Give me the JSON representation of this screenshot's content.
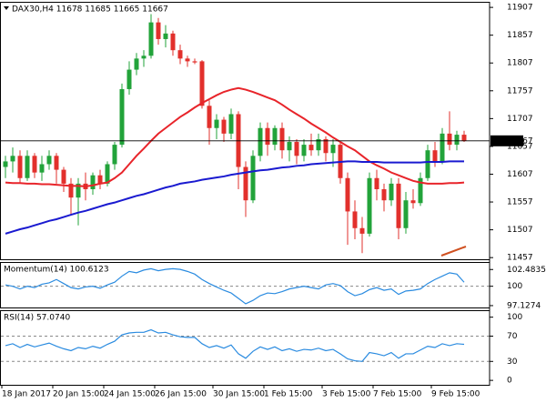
{
  "chart_data": [
    {
      "type": "candlestick",
      "title": "DAX30,H4 11678 11685 11665 11667",
      "categories": [
        "18 Jan 2017",
        null,
        null,
        null,
        null,
        null,
        null,
        "20 Jan 15:00",
        null,
        null,
        null,
        null,
        null,
        null,
        "24 Jan 15:00",
        null,
        null,
        null,
        null,
        null,
        null,
        "26 Jan 15:00",
        null,
        null,
        null,
        null,
        null,
        null,
        null,
        "30 Jan 15:00",
        null,
        null,
        null,
        null,
        null,
        null,
        "1 Feb 15:00",
        null,
        null,
        null,
        null,
        null,
        null,
        null,
        "3 Feb 15:00",
        null,
        null,
        null,
        null,
        null,
        null,
        "7 Feb 15:00",
        null,
        null,
        null,
        null,
        null,
        null,
        null,
        "9 Feb 15:00",
        null,
        null,
        null,
        null
      ],
      "open": [
        11620,
        11630,
        11640,
        11600,
        11640,
        11610,
        11625,
        11640,
        11615,
        11590,
        11565,
        11590,
        11580,
        11605,
        11590,
        11625,
        11660,
        11760,
        11795,
        11815,
        11820,
        11880,
        11850,
        11860,
        11830,
        11815,
        11810,
        11810,
        11730,
        11690,
        11705,
        11680,
        11715,
        11620,
        11560,
        11640,
        11690,
        11660,
        11690,
        11650,
        11665,
        11640,
        11660,
        11650,
        11670,
        11645,
        11660,
        11600,
        11540,
        11510,
        11500,
        11600,
        11580,
        11560,
        11590,
        11510,
        11560,
        11555,
        11600,
        11650,
        11630,
        11680,
        11660,
        11678
      ],
      "high": [
        11640,
        11655,
        11650,
        11650,
        11645,
        11640,
        11650,
        11645,
        11620,
        11600,
        11600,
        11610,
        11610,
        11615,
        11630,
        11665,
        11770,
        11810,
        11825,
        11830,
        11895,
        11888,
        11875,
        11865,
        11840,
        11820,
        11815,
        11812,
        11740,
        11715,
        11710,
        11725,
        11720,
        11630,
        11650,
        11700,
        11700,
        11695,
        11700,
        11675,
        11670,
        11670,
        11680,
        11680,
        11675,
        11670,
        11665,
        11610,
        11560,
        11530,
        11610,
        11615,
        11590,
        11600,
        11600,
        11575,
        11580,
        11610,
        11660,
        11665,
        11690,
        11720,
        11685,
        11685
      ],
      "low": [
        11600,
        11610,
        11590,
        11595,
        11600,
        11595,
        11615,
        11590,
        11575,
        11535,
        11515,
        11560,
        11570,
        11580,
        11585,
        11615,
        11655,
        11750,
        11785,
        11800,
        11815,
        11840,
        11835,
        11820,
        11805,
        11800,
        11805,
        11725,
        11660,
        11670,
        11665,
        11670,
        11580,
        11530,
        11555,
        11630,
        11640,
        11650,
        11635,
        11630,
        11625,
        11630,
        11640,
        11640,
        11630,
        11620,
        11590,
        11480,
        11490,
        11465,
        11495,
        11560,
        11540,
        11550,
        11490,
        11500,
        11545,
        11550,
        11595,
        11620,
        11625,
        11650,
        11650,
        11665
      ],
      "close": [
        11630,
        11640,
        11600,
        11640,
        11610,
        11625,
        11640,
        11615,
        11590,
        11565,
        11590,
        11580,
        11605,
        11590,
        11625,
        11660,
        11760,
        11795,
        11815,
        11820,
        11880,
        11850,
        11860,
        11830,
        11815,
        11810,
        11808,
        11730,
        11690,
        11705,
        11680,
        11715,
        11620,
        11560,
        11640,
        11690,
        11660,
        11690,
        11650,
        11665,
        11640,
        11660,
        11650,
        11670,
        11645,
        11660,
        11600,
        11540,
        11510,
        11500,
        11600,
        11580,
        11560,
        11590,
        11510,
        11560,
        11555,
        11600,
        11650,
        11630,
        11680,
        11660,
        11678,
        11667
      ],
      "up_color": "#22a33a",
      "down_color": "#e2302c",
      "series": [
        {
          "color": "#e8242a",
          "values": [
            11592,
            11591,
            11591,
            11590,
            11590,
            11589,
            11589,
            11588,
            11587,
            11586,
            11586,
            11585,
            11587,
            11590,
            11592,
            11600,
            11610,
            11625,
            11640,
            11653,
            11667,
            11680,
            11690,
            11700,
            11710,
            11718,
            11727,
            11735,
            11742,
            11749,
            11755,
            11759,
            11762,
            11759,
            11755,
            11750,
            11745,
            11740,
            11732,
            11723,
            11715,
            11707,
            11698,
            11690,
            11682,
            11673,
            11665,
            11657,
            11650,
            11640,
            11630,
            11623,
            11617,
            11610,
            11605,
            11600,
            11595,
            11592,
            11590,
            11590,
            11590,
            11591,
            11591,
            11592
          ]
        },
        {
          "color": "#1a1ad0",
          "values": [
            11500,
            11504,
            11508,
            11511,
            11515,
            11519,
            11523,
            11526,
            11530,
            11534,
            11538,
            11541,
            11545,
            11549,
            11553,
            11556,
            11560,
            11564,
            11568,
            11571,
            11575,
            11579,
            11583,
            11586,
            11590,
            11592,
            11594,
            11597,
            11599,
            11601,
            11603,
            11606,
            11608,
            11610,
            11612,
            11614,
            11615,
            11617,
            11619,
            11620,
            11622,
            11623,
            11625,
            11626,
            11627,
            11628,
            11629,
            11630,
            11630,
            11629,
            11629,
            11629,
            11628,
            11628,
            11628,
            11628,
            11628,
            11628,
            11629,
            11629,
            11629,
            11630,
            11630,
            11630
          ]
        }
      ],
      "last_price": 11667,
      "ylim": [
        11454,
        11917
      ],
      "yticks": [
        11907,
        11857,
        11807,
        11757,
        11707,
        11657,
        11607,
        11557,
        11507,
        11457
      ]
    },
    {
      "type": "line",
      "title": "Momentum(14) 100.6123",
      "series": [
        {
          "color": "#2a8be0",
          "values": [
            100.2,
            100.0,
            99.6,
            100.0,
            99.8,
            100.3,
            100.5,
            101.0,
            100.4,
            99.8,
            99.6,
            99.9,
            100.0,
            99.7,
            100.2,
            100.6,
            101.5,
            102.2,
            102.0,
            102.4,
            102.6,
            102.3,
            102.5,
            102.6,
            102.5,
            102.2,
            101.8,
            101.0,
            100.4,
            99.9,
            99.4,
            99.0,
            98.2,
            97.4,
            97.9,
            98.6,
            99.0,
            98.9,
            99.2,
            99.6,
            99.8,
            100.0,
            99.8,
            99.6,
            100.2,
            100.4,
            100.1,
            99.2,
            98.6,
            98.9,
            99.5,
            99.8,
            99.4,
            99.6,
            98.8,
            99.3,
            99.4,
            99.6,
            100.4,
            101.0,
            101.5,
            102.0,
            101.8,
            100.6
          ]
        }
      ],
      "levels": [
        100
      ],
      "ylim": [
        96.85,
        103.6
      ],
      "yticks": [
        102.4835,
        100,
        97.1274
      ]
    },
    {
      "type": "line",
      "title": "RSI(14) 57.0740",
      "series": [
        {
          "color": "#2a8be0",
          "values": [
            55,
            58,
            52,
            57,
            53,
            56,
            59,
            54,
            50,
            47,
            52,
            50,
            54,
            51,
            57,
            62,
            72,
            75,
            76,
            76,
            80,
            75,
            76,
            72,
            69,
            68,
            68,
            58,
            52,
            55,
            51,
            56,
            42,
            35,
            46,
            53,
            49,
            53,
            47,
            50,
            46,
            49,
            48,
            51,
            47,
            49,
            42,
            34,
            31,
            30,
            44,
            42,
            39,
            44,
            35,
            42,
            42,
            48,
            54,
            52,
            58,
            55,
            58,
            57
          ]
        }
      ],
      "levels": [
        70,
        30
      ],
      "ylim": [
        -7,
        111
      ],
      "yticks": [
        100,
        70,
        30,
        0
      ]
    }
  ]
}
